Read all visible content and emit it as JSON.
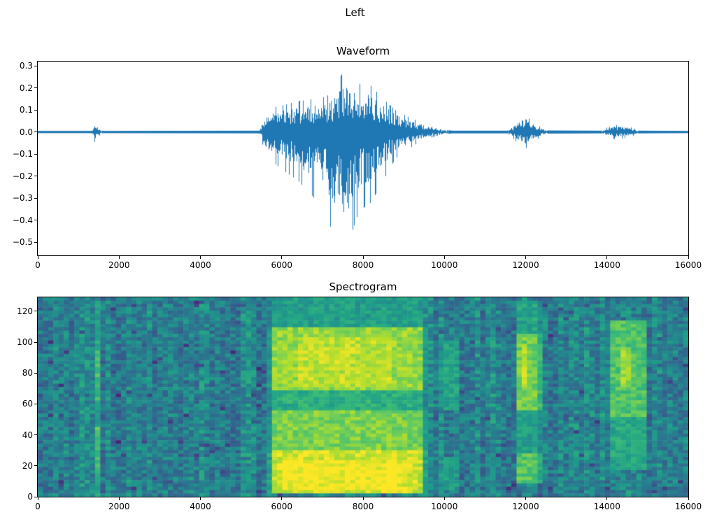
{
  "figure": {
    "title": "Left",
    "background": "#ffffff"
  },
  "chart_data": [
    {
      "type": "line",
      "title": "Waveform",
      "line_color": "#1f77b4",
      "xlim": [
        0,
        16000
      ],
      "ylim": [
        -0.56,
        0.32
      ],
      "xticks": {
        "values": [
          0,
          2000,
          4000,
          6000,
          8000,
          10000,
          12000,
          14000,
          16000
        ],
        "labels": [
          "0",
          "2000",
          "4000",
          "6000",
          "8000",
          "10000",
          "12000",
          "14000",
          "16000"
        ]
      },
      "yticks": {
        "values": [
          0.3,
          0.2,
          0.1,
          0.0,
          -0.1,
          -0.2,
          -0.3,
          -0.4,
          -0.5
        ],
        "labels": [
          "0.3",
          "0.2",
          "0.1",
          "0.0",
          "−0.1",
          "−0.2",
          "−0.3",
          "−0.4",
          "−0.5"
        ]
      },
      "envelope": {
        "x": [
          0,
          1330,
          1400,
          1460,
          1540,
          1600,
          5450,
          5600,
          5750,
          6000,
          6400,
          6800,
          7100,
          7300,
          7500,
          7650,
          7900,
          8200,
          8500,
          8800,
          9100,
          9350,
          9600,
          9900,
          10200,
          11550,
          11700,
          11850,
          12000,
          12150,
          12350,
          12550,
          13850,
          14000,
          14200,
          14450,
          14650,
          14800,
          16000
        ],
        "pos": [
          0.005,
          0.005,
          0.045,
          0.03,
          0.012,
          0.005,
          0.006,
          0.09,
          0.11,
          0.12,
          0.14,
          0.15,
          0.16,
          0.2,
          0.27,
          0.24,
          0.22,
          0.21,
          0.15,
          0.1,
          0.07,
          0.05,
          0.03,
          0.012,
          0.006,
          0.006,
          0.03,
          0.06,
          0.075,
          0.05,
          0.025,
          0.007,
          0.006,
          0.02,
          0.032,
          0.028,
          0.018,
          0.006,
          0.005
        ],
        "neg": [
          -0.005,
          -0.005,
          -0.045,
          -0.03,
          -0.012,
          -0.005,
          -0.006,
          -0.1,
          -0.13,
          -0.17,
          -0.22,
          -0.3,
          -0.38,
          -0.48,
          -0.53,
          -0.5,
          -0.36,
          -0.32,
          -0.22,
          -0.12,
          -0.08,
          -0.05,
          -0.03,
          -0.012,
          -0.006,
          -0.006,
          -0.03,
          -0.06,
          -0.075,
          -0.05,
          -0.025,
          -0.007,
          -0.006,
          -0.02,
          -0.032,
          -0.028,
          -0.018,
          -0.006,
          -0.005
        ]
      }
    },
    {
      "type": "heatmap",
      "title": "Spectrogram",
      "colormap": "viridis",
      "xlim": [
        0,
        16000
      ],
      "ylim": [
        0,
        129
      ],
      "xticks": {
        "values": [
          0,
          2000,
          4000,
          6000,
          8000,
          10000,
          12000,
          14000,
          16000
        ],
        "labels": [
          "0",
          "2000",
          "4000",
          "6000",
          "8000",
          "10000",
          "12000",
          "14000",
          "16000"
        ]
      },
      "yticks": {
        "values": [
          0,
          20,
          40,
          60,
          80,
          100,
          120
        ],
        "labels": [
          "0",
          "20",
          "40",
          "60",
          "80",
          "100",
          "120"
        ]
      },
      "grid": {
        "cols": 125,
        "rows": 60
      },
      "background_level": 0.44,
      "noise": 0.26,
      "events": [
        {
          "t0": 1280,
          "t1": 1620,
          "fade": 120,
          "bands": [
            [
              0,
              15,
              0.55
            ],
            [
              15,
              45,
              0.7
            ],
            [
              45,
              62,
              0.58
            ],
            [
              62,
              95,
              0.68
            ],
            [
              95,
              126,
              0.58
            ]
          ]
        },
        {
          "t0": 1650,
          "t1": 1900,
          "fade": 100,
          "bands": [
            [
              55,
              85,
              0.55
            ],
            [
              15,
              35,
              0.52
            ]
          ]
        },
        {
          "t0": 5480,
          "t1": 9750,
          "fade": 350,
          "bands": [
            [
              2,
              30,
              0.93
            ],
            [
              30,
              55,
              0.8
            ],
            [
              55,
              68,
              0.62
            ],
            [
              68,
              110,
              0.84
            ],
            [
              110,
              128,
              0.55
            ]
          ]
        },
        {
          "t0": 5700,
          "t1": 9300,
          "fade": 300,
          "bands": [
            [
              4,
              24,
              0.98
            ]
          ]
        },
        {
          "t0": 6100,
          "t1": 9000,
          "fade": 300,
          "bands": [
            [
              72,
              104,
              0.9
            ]
          ]
        },
        {
          "t0": 9750,
          "t1": 10500,
          "fade": 200,
          "bands": [
            [
              55,
              100,
              0.58
            ],
            [
              5,
              25,
              0.55
            ]
          ]
        },
        {
          "t0": 11680,
          "t1": 12480,
          "fade": 150,
          "bands": [
            [
              8,
              28,
              0.74
            ],
            [
              28,
              55,
              0.55
            ],
            [
              55,
              105,
              0.78
            ],
            [
              105,
              126,
              0.58
            ]
          ]
        },
        {
          "t0": 11850,
          "t1": 12180,
          "fade": 120,
          "bands": [
            [
              68,
              98,
              0.9
            ]
          ]
        },
        {
          "t0": 13900,
          "t1": 15120,
          "fade": 200,
          "bands": [
            [
              18,
              52,
              0.6
            ],
            [
              52,
              115,
              0.72
            ]
          ]
        },
        {
          "t0": 14200,
          "t1": 14750,
          "fade": 150,
          "bands": [
            [
              70,
              96,
              0.85
            ]
          ]
        }
      ]
    }
  ]
}
